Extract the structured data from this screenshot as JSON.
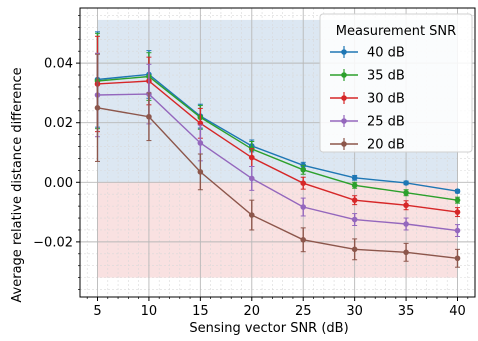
{
  "chart_data": {
    "type": "line",
    "title": "",
    "xlabel": "Sensing vector SNR (dB)",
    "ylabel": "Average relative distance difference",
    "xlim": [
      3.3,
      41.7
    ],
    "ylim": [
      -0.0385,
      0.0585
    ],
    "x": [
      5,
      10,
      15,
      20,
      25,
      30,
      35,
      40
    ],
    "xticks": [
      5,
      10,
      15,
      20,
      25,
      30,
      35,
      40
    ],
    "xtick_labels": [
      "5",
      "10",
      "15",
      "20",
      "25",
      "30",
      "35",
      "40"
    ],
    "yticks": [
      -0.02,
      0,
      0.02,
      0.04
    ],
    "ytick_labels": [
      "−0.02",
      "0.00",
      "0.02",
      "0.04"
    ],
    "grid": true,
    "legend": {
      "title": "Measurement SNR",
      "placement": "top-right"
    },
    "shaded_regions": [
      {
        "y_from": 0,
        "y_to": 0.0545,
        "x_from": 5,
        "x_to": 40,
        "color": "#dce7f2"
      },
      {
        "y_from": -0.032,
        "y_to": 0,
        "x_from": 5,
        "x_to": 40,
        "color": "#f9e1e1"
      }
    ],
    "series": [
      {
        "name": "40 dB",
        "color": "#1f77b4",
        "values": [
          0.0345,
          0.0362,
          0.0222,
          0.0122,
          0.0057,
          0.0015,
          -0.0002,
          -0.003
        ],
        "errors": [
          0.016,
          0.008,
          0.004,
          0.002,
          0.001,
          0.0008,
          0.0006,
          0.0006
        ]
      },
      {
        "name": "35 dB",
        "color": "#2ca02c",
        "values": [
          0.034,
          0.0355,
          0.0218,
          0.0112,
          0.0042,
          -0.001,
          -0.0035,
          -0.006
        ],
        "errors": [
          0.016,
          0.008,
          0.004,
          0.0025,
          0.0015,
          0.001,
          0.001,
          0.001
        ]
      },
      {
        "name": "30 dB",
        "color": "#d62728",
        "values": [
          0.033,
          0.034,
          0.0198,
          0.0083,
          -0.0003,
          -0.006,
          -0.0077,
          -0.01
        ],
        "errors": [
          0.016,
          0.008,
          0.005,
          0.003,
          0.002,
          0.0015,
          0.0015,
          0.0015
        ]
      },
      {
        "name": "25 dB",
        "color": "#9467bd",
        "values": [
          0.0293,
          0.0296,
          0.0132,
          0.0013,
          -0.0083,
          -0.0125,
          -0.014,
          -0.0162
        ],
        "errors": [
          0.014,
          0.01,
          0.006,
          0.004,
          0.003,
          0.002,
          0.002,
          0.002
        ]
      },
      {
        "name": "20 dB",
        "color": "#8c564b",
        "values": [
          0.025,
          0.022,
          0.0035,
          -0.011,
          -0.0193,
          -0.0225,
          -0.0235,
          -0.0255
        ],
        "errors": [
          0.018,
          0.008,
          0.006,
          0.005,
          0.004,
          0.0035,
          0.003,
          0.003
        ]
      }
    ]
  }
}
